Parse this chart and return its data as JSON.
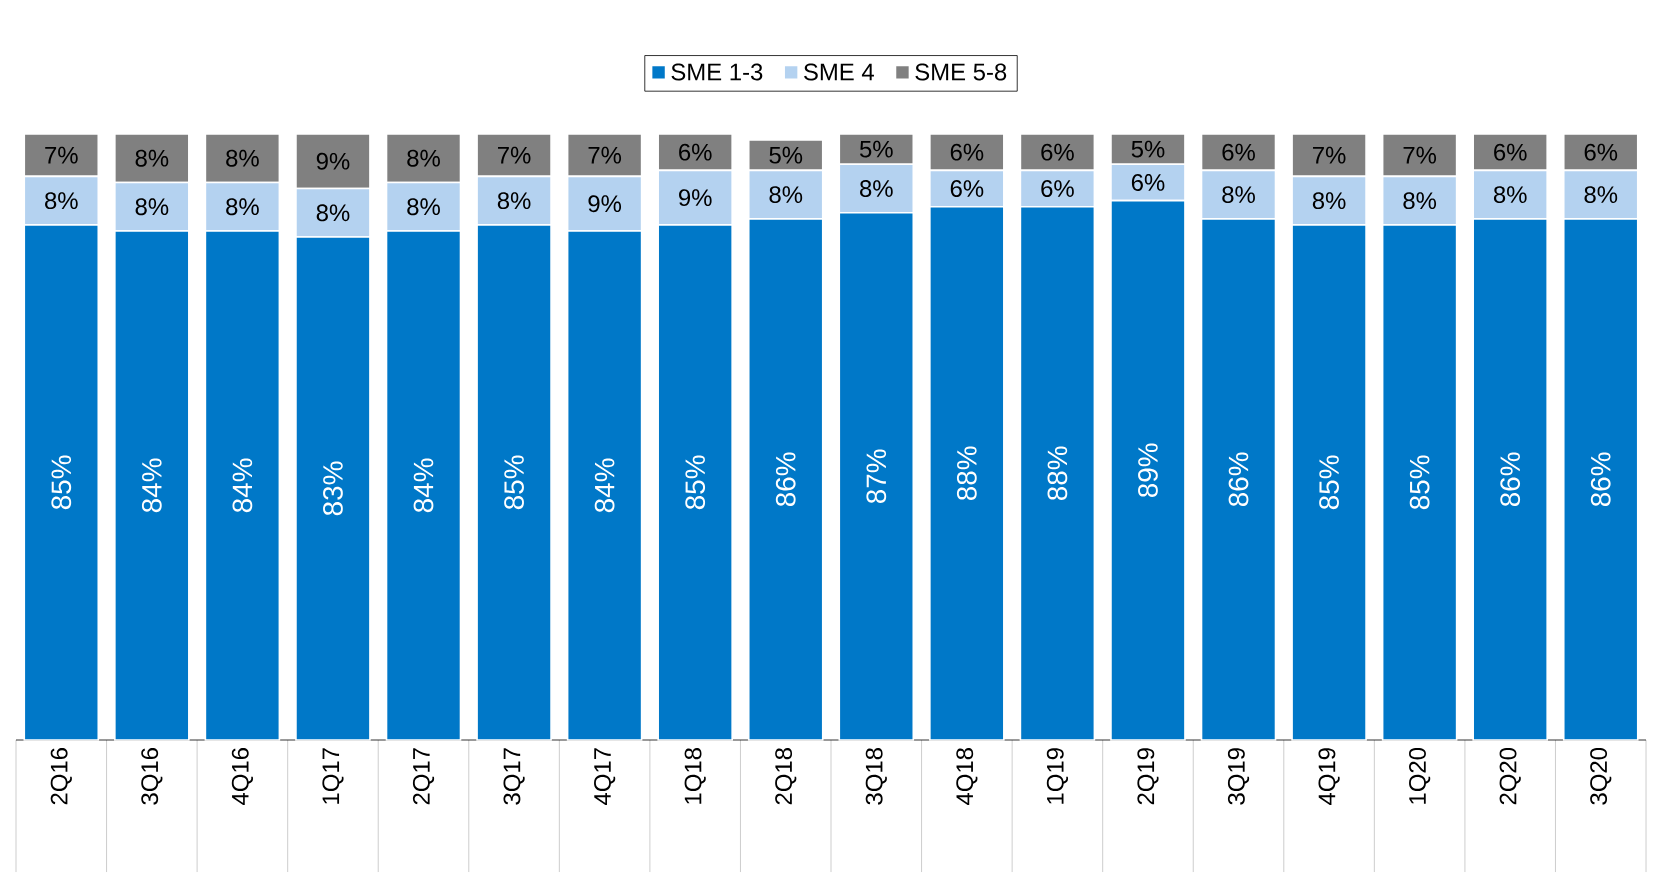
{
  "chart_data": {
    "type": "bar",
    "stacked": true,
    "legend": "top",
    "data_labels": true,
    "ylim": [
      0,
      100
    ],
    "categories": [
      "2Q16",
      "3Q16",
      "4Q16",
      "1Q17",
      "2Q17",
      "3Q17",
      "4Q17",
      "1Q18",
      "2Q18",
      "3Q18",
      "4Q18",
      "1Q19",
      "2Q19",
      "3Q19",
      "4Q19",
      "1Q20",
      "2Q20",
      "3Q20"
    ],
    "series": [
      {
        "name": "SME 1-3",
        "color": "#0078c8",
        "values": [
          85,
          84,
          84,
          83,
          84,
          85,
          84,
          85,
          86,
          87,
          88,
          88,
          89,
          86,
          85,
          85,
          86,
          86
        ],
        "value_labels": [
          "85%",
          "84%",
          "84%",
          "83%",
          "84%",
          "85%",
          "84%",
          "85%",
          "86%",
          "87%",
          "88%",
          "88%",
          "89%",
          "86%",
          "85%",
          "85%",
          "86%",
          "86%"
        ]
      },
      {
        "name": "SME 4",
        "color": "#b4d2f0",
        "values": [
          8,
          8,
          8,
          8,
          8,
          8,
          9,
          9,
          8,
          8,
          6,
          6,
          6,
          8,
          8,
          8,
          8,
          8
        ],
        "value_labels": [
          "8%",
          "8%",
          "8%",
          "8%",
          "8%",
          "8%",
          "9%",
          "9%",
          "8%",
          "8%",
          "6%",
          "6%",
          "6%",
          "8%",
          "8%",
          "8%",
          "8%",
          "8%"
        ]
      },
      {
        "name": "SME 5-8",
        "color": "#808080",
        "values": [
          7,
          8,
          8,
          9,
          8,
          7,
          7,
          6,
          5,
          5,
          6,
          6,
          5,
          6,
          7,
          7,
          6,
          6
        ],
        "value_labels": [
          "7%",
          "8%",
          "8%",
          "9%",
          "8%",
          "7%",
          "7%",
          "6%",
          "5%",
          "5%",
          "6%",
          "6%",
          "5%",
          "6%",
          "7%",
          "7%",
          "6%",
          "6%"
        ]
      }
    ]
  }
}
